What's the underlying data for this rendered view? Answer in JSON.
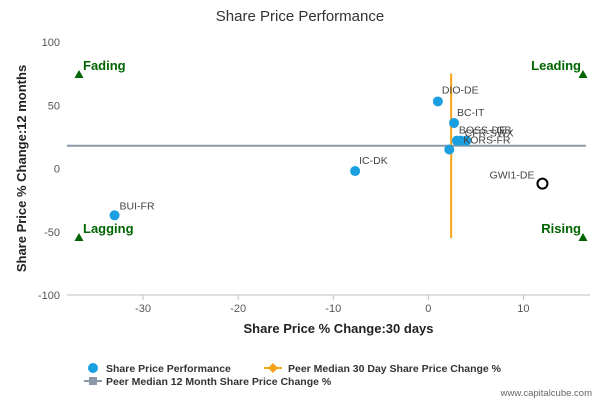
{
  "chart_data": {
    "type": "scatter",
    "title": "Share Price Performance",
    "xlabel": "Share Price % Change:30 days",
    "ylabel": "Share Price % Change:12 months",
    "xlim": [
      -38,
      17
    ],
    "ylim": [
      -100,
      100
    ],
    "x_ticks": [
      -30,
      -20,
      -10,
      0,
      10
    ],
    "y_ticks": [
      100,
      50,
      0,
      -50,
      -100
    ],
    "grid": false,
    "legend_position": "bottom-left",
    "series": [
      {
        "name": "Share Price Performance",
        "color": "#1a9fe0",
        "points": [
          {
            "label": "DIO-DE",
            "x": 1.0,
            "y": 53
          },
          {
            "label": "BC-IT",
            "x": 2.7,
            "y": 36
          },
          {
            "label": "BOSS-DE",
            "x": 3.0,
            "y": 22
          },
          {
            "label": "CFR-SWX",
            "x": 3.4,
            "y": 22
          },
          {
            "label": "GB",
            "x": 4.0,
            "y": 22
          },
          {
            "label": "KORS-FR",
            "x": 2.2,
            "y": 15
          },
          {
            "label": "IC-DK",
            "x": -7.7,
            "y": -2
          },
          {
            "label": "BUI-FR",
            "x": -33.0,
            "y": -37
          }
        ]
      },
      {
        "name": "GWI1-DE",
        "color": "#000000",
        "highlight": true,
        "points": [
          {
            "label": "GWI1-DE",
            "x": 12.0,
            "y": -12
          }
        ]
      }
    ],
    "peer_median_30d": {
      "name": "Peer Median 30 Day Share Price Change %",
      "value": 2.4,
      "color": "#f5a31a"
    },
    "peer_median_12m": {
      "name": "Peer Median 12 Month Share Price Change %",
      "value": 18,
      "color": "#8a98a8"
    },
    "quadrants": {
      "top_left": "Fading",
      "top_right": "Leading",
      "bottom_left": "Lagging",
      "bottom_right": "Rising",
      "color": "#006400"
    },
    "legend": [
      {
        "label": "Share Price Performance",
        "kind": "dot",
        "color": "#1a9fe0"
      },
      {
        "label": "Peer Median 30 Day Share Price Change %",
        "kind": "line-diamond",
        "color": "#f5a31a"
      },
      {
        "label": "Peer Median 12 Month Share Price Change %",
        "kind": "line-square",
        "color": "#8a98a8"
      }
    ],
    "credit": "www.capitalcube.com"
  }
}
